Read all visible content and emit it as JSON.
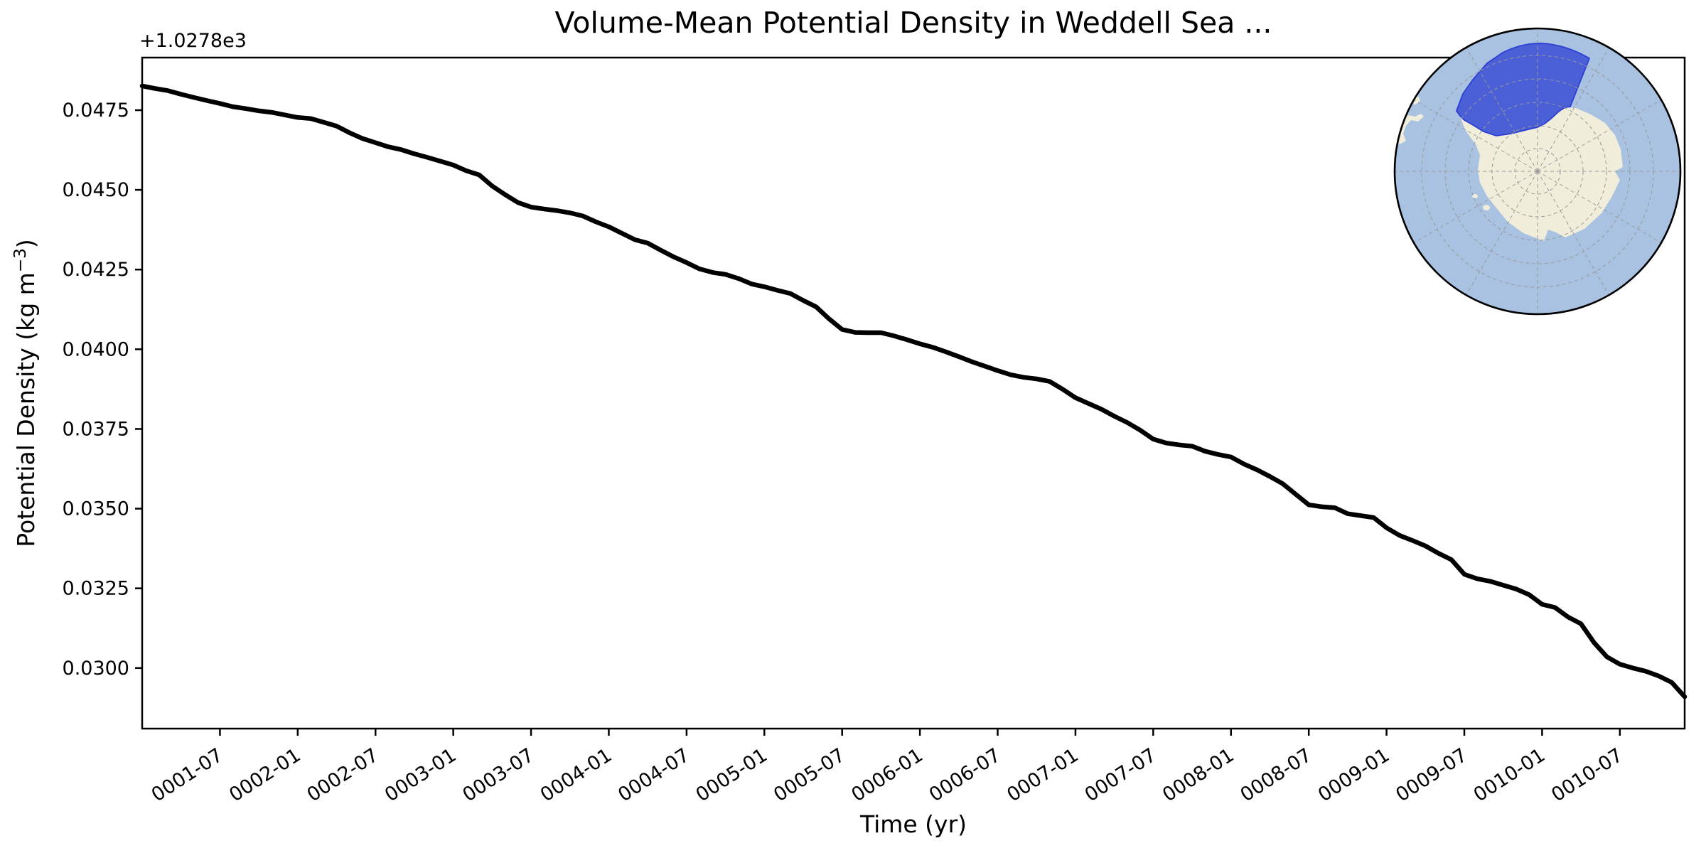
{
  "chart_data": {
    "type": "line",
    "title": "Volume-Mean Potential Density in Weddell Sea ...",
    "xlabel": "Time (yr)",
    "ylabel": "Potential Density (kg m⁻³)",
    "ylabel_parts": {
      "prefix": "Potential Density (kg m",
      "sup": "−3",
      "suffix": ")"
    },
    "y_offset_text": "+1.0278e3",
    "y_offset": 1027.8,
    "grid": false,
    "legend": null,
    "line_color": "#000000",
    "line_width": 6.5,
    "x_start": "0001-01",
    "x_end": "0010-12",
    "x_freq": "monthly",
    "ylim_rel": [
      0.0281,
      0.04915
    ],
    "x_ticks": [
      {
        "month": 6,
        "label": "0001-07"
      },
      {
        "month": 12,
        "label": "0002-01"
      },
      {
        "month": 18,
        "label": "0002-07"
      },
      {
        "month": 24,
        "label": "0003-01"
      },
      {
        "month": 30,
        "label": "0003-07"
      },
      {
        "month": 36,
        "label": "0004-01"
      },
      {
        "month": 42,
        "label": "0004-07"
      },
      {
        "month": 48,
        "label": "0005-01"
      },
      {
        "month": 54,
        "label": "0005-07"
      },
      {
        "month": 60,
        "label": "0006-01"
      },
      {
        "month": 66,
        "label": "0006-07"
      },
      {
        "month": 72,
        "label": "0007-01"
      },
      {
        "month": 78,
        "label": "0007-07"
      },
      {
        "month": 84,
        "label": "0008-01"
      },
      {
        "month": 90,
        "label": "0008-07"
      },
      {
        "month": 96,
        "label": "0009-01"
      },
      {
        "month": 102,
        "label": "0009-07"
      },
      {
        "month": 108,
        "label": "0010-01"
      },
      {
        "month": 114,
        "label": "0010-07"
      }
    ],
    "y_ticks": [
      "0.0475",
      "0.0450",
      "0.0425",
      "0.0400",
      "0.0375",
      "0.0350",
      "0.0325",
      "0.0300"
    ],
    "series": [
      {
        "name": "volume-mean potential density (relative to +1.0278e3)",
        "values_rel": [
          0.04826,
          0.04818,
          0.04811,
          0.048,
          0.0479,
          0.0478,
          0.04771,
          0.04761,
          0.04755,
          0.04748,
          0.04743,
          0.04735,
          0.04727,
          0.04724,
          0.04712,
          0.047,
          0.04679,
          0.04661,
          0.04648,
          0.04635,
          0.04626,
          0.04613,
          0.04602,
          0.0459,
          0.04578,
          0.0456,
          0.04547,
          0.04512,
          0.04485,
          0.0446,
          0.04446,
          0.0444,
          0.04435,
          0.04428,
          0.04418,
          0.044,
          0.04384,
          0.04364,
          0.04344,
          0.04333,
          0.04311,
          0.0429,
          0.04272,
          0.04252,
          0.04241,
          0.04235,
          0.04222,
          0.04205,
          0.04196,
          0.04185,
          0.04175,
          0.04153,
          0.04133,
          0.04095,
          0.04062,
          0.04053,
          0.04052,
          0.04052,
          0.04042,
          0.0403,
          0.04017,
          0.04006,
          0.03992,
          0.03977,
          0.03961,
          0.03947,
          0.03933,
          0.0392,
          0.03912,
          0.03907,
          0.03899,
          0.03875,
          0.03848,
          0.0383,
          0.03812,
          0.0379,
          0.0377,
          0.03746,
          0.03718,
          0.03706,
          0.037,
          0.03696,
          0.0368,
          0.0367,
          0.03662,
          0.0364,
          0.03622,
          0.03601,
          0.03578,
          0.03545,
          0.03512,
          0.03506,
          0.03503,
          0.03484,
          0.03478,
          0.03472,
          0.0344,
          0.03416,
          0.034,
          0.03383,
          0.0336,
          0.0334,
          0.03294,
          0.0328,
          0.03272,
          0.0326,
          0.03248,
          0.0323,
          0.032,
          0.0319,
          0.0316,
          0.03139,
          0.0308,
          0.03035,
          0.03012,
          0.03,
          0.0299,
          0.02975,
          0.02955,
          0.0291
        ]
      }
    ]
  },
  "inset_map": {
    "description": "south-polar-stereographic-map",
    "highlight_region": "Weddell Sea",
    "colors": {
      "ocean": "#a9c2e1",
      "land": "#f1eddb",
      "region_fill": "#4b5fd7",
      "region_border": "#2d3fd3",
      "graticule": "#999999",
      "boundary": "#000000"
    }
  }
}
